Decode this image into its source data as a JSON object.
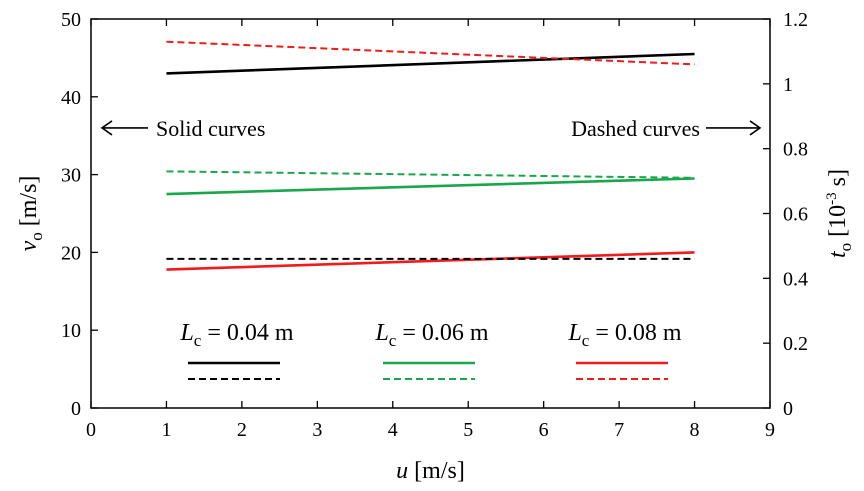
{
  "chart_data": {
    "type": "line",
    "xlabel": {
      "main": "u",
      "unit": " [m/s]"
    },
    "ylabel_left": {
      "main": "v",
      "sub": "o",
      "unit": " [m/s]"
    },
    "ylabel_right": {
      "main": "t",
      "sub": "o",
      "unit_pre": " [10",
      "unit_sup": "-3",
      "unit_post": " s]"
    },
    "xlim": [
      0,
      9
    ],
    "ylim_left": [
      0,
      50
    ],
    "ylim_right": [
      0,
      1.2
    ],
    "x_ticks": [
      0,
      1,
      2,
      3,
      4,
      5,
      6,
      7,
      8,
      9
    ],
    "y_left_ticks": [
      0,
      10,
      20,
      30,
      40,
      50
    ],
    "y_right_ticks": [
      "0",
      "0.2",
      "0.4",
      "0.6",
      "0.8",
      "1",
      "1.2"
    ],
    "y_right_tick_values": [
      0,
      0.2,
      0.4,
      0.6,
      0.8,
      1.0,
      1.2
    ],
    "colors": {
      "0.04": "#000000",
      "0.06": "#1aa64b",
      "0.08": "#ee1c1c"
    },
    "legend": [
      {
        "name_main": "L",
        "name_sub": "c",
        "value": " = 0.04 m",
        "color": "#000000"
      },
      {
        "name_main": "L",
        "name_sub": "c",
        "value": " = 0.06 m",
        "color": "#1aa64b"
      },
      {
        "name_main": "L",
        "name_sub": "c",
        "value": " = 0.08 m",
        "color": "#ee1c1c"
      }
    ],
    "annotations": {
      "solid": "Solid curves",
      "dashed": "Dashed curves"
    },
    "series": [
      {
        "group": "0.04",
        "style": "solid",
        "axis": "left",
        "x": [
          1,
          8
        ],
        "y": [
          43.0,
          45.5
        ],
        "color": "#000000"
      },
      {
        "group": "0.06",
        "style": "solid",
        "axis": "left",
        "x": [
          1,
          8
        ],
        "y": [
          27.5,
          29.5
        ],
        "color": "#1aa64b"
      },
      {
        "group": "0.08",
        "style": "solid",
        "axis": "left",
        "x": [
          1,
          8
        ],
        "y": [
          17.8,
          20.0
        ],
        "color": "#ee1c1c"
      },
      {
        "group": "0.04",
        "style": "dashed",
        "axis": "right",
        "x": [
          1,
          8
        ],
        "y": [
          0.46,
          0.46
        ],
        "color": "#000000"
      },
      {
        "group": "0.06",
        "style": "dashed",
        "axis": "right",
        "x": [
          1,
          8
        ],
        "y": [
          0.73,
          0.71
        ],
        "color": "#1aa64b"
      },
      {
        "group": "0.08",
        "style": "dashed",
        "axis": "right",
        "x": [
          1,
          8
        ],
        "y": [
          1.13,
          1.06
        ],
        "color": "#ee1c1c"
      }
    ]
  }
}
